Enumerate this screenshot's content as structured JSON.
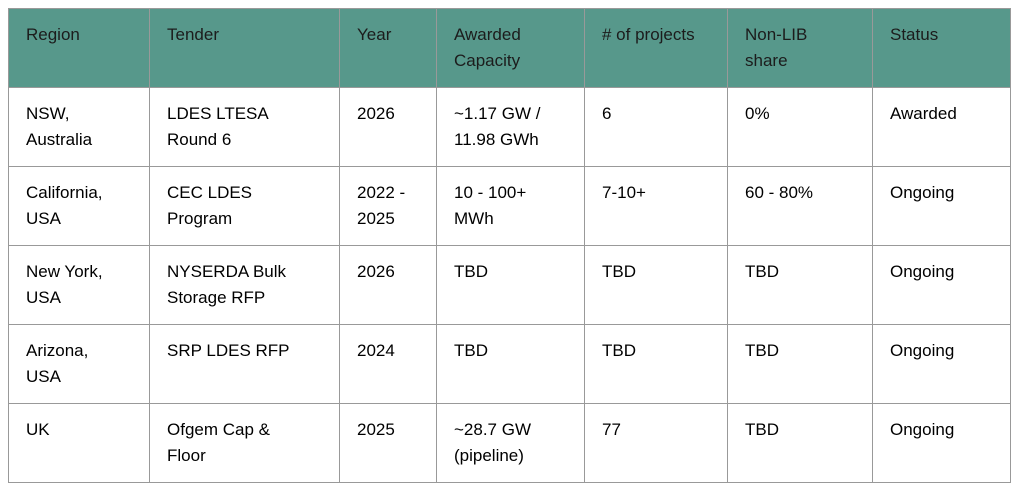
{
  "colors": {
    "header_bg": "#57988b",
    "header_text": "#1c1c1c",
    "body_bg": "#ffffff",
    "body_text": "#000000",
    "border": "#999999"
  },
  "table": {
    "columns": [
      "Region",
      "Tender",
      "Year",
      "Awarded\nCapacity",
      "# of projects",
      "Non-LIB\nshare",
      "Status"
    ],
    "rows": [
      {
        "region": "NSW,\nAustralia",
        "tender": "LDES LTESA\nRound 6",
        "year": "2026",
        "awarded_capacity": "~1.17 GW /\n11.98 GWh",
        "num_projects": "6",
        "non_lib_share": "0%",
        "status": "Awarded"
      },
      {
        "region": "California,\nUSA",
        "tender": "CEC LDES\nProgram",
        "year": "2022 -\n2025",
        "awarded_capacity": "10 - 100+\nMWh",
        "num_projects": "7-10+",
        "non_lib_share": "60 - 80%",
        "status": "Ongoing"
      },
      {
        "region": "New York,\nUSA",
        "tender": "NYSERDA Bulk\nStorage RFP",
        "year": "2026",
        "awarded_capacity": "TBD",
        "num_projects": "TBD",
        "non_lib_share": "TBD",
        "status": "Ongoing"
      },
      {
        "region": "Arizona,\nUSA",
        "tender": "SRP LDES RFP",
        "year": "2024",
        "awarded_capacity": "TBD",
        "num_projects": "TBD",
        "non_lib_share": "TBD",
        "status": "Ongoing"
      },
      {
        "region": "UK",
        "tender": "Ofgem Cap &\nFloor",
        "year": "2025",
        "awarded_capacity": "~28.7 GW\n(pipeline)",
        "num_projects": "77",
        "non_lib_share": "TBD",
        "status": "Ongoing"
      }
    ]
  }
}
